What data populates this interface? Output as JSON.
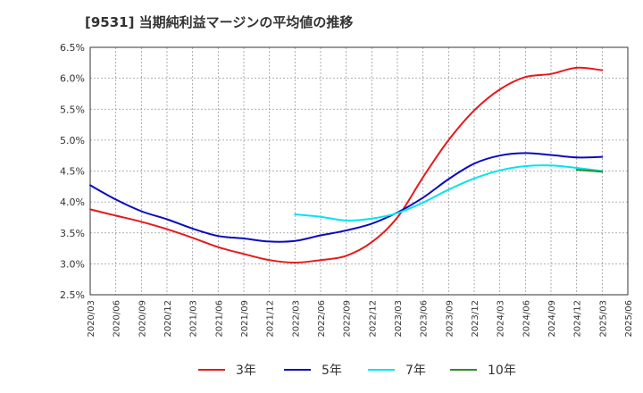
{
  "chart_data": {
    "type": "line",
    "title": "[9531]  当期純利益マージンの平均値の推移",
    "xlabel": "",
    "ylabel": "",
    "ylim": [
      2.5,
      6.5
    ],
    "y_ticks": [
      "2.5%",
      "3.0%",
      "3.5%",
      "4.0%",
      "4.5%",
      "5.0%",
      "5.5%",
      "6.0%",
      "6.5%"
    ],
    "x_ticks": [
      "2020/03",
      "2020/06",
      "2020/09",
      "2020/12",
      "2021/03",
      "2021/06",
      "2021/09",
      "2021/12",
      "2022/03",
      "2022/06",
      "2022/09",
      "2022/12",
      "2023/03",
      "2023/06",
      "2023/09",
      "2023/12",
      "2024/03",
      "2024/06",
      "2024/09",
      "2024/12",
      "2025/03",
      "2025/06"
    ],
    "grid": true,
    "legend_position": "bottom",
    "series": [
      {
        "name": "3年",
        "color": "#e41a1c",
        "x": [
          "2020/03",
          "2020/06",
          "2020/09",
          "2020/12",
          "2021/03",
          "2021/06",
          "2021/09",
          "2021/12",
          "2022/03",
          "2022/06",
          "2022/09",
          "2022/12",
          "2023/03",
          "2023/06",
          "2023/09",
          "2023/12",
          "2024/03",
          "2024/06",
          "2024/09",
          "2024/12",
          "2025/03"
        ],
        "values": [
          3.88,
          3.78,
          3.68,
          3.56,
          3.42,
          3.27,
          3.16,
          3.06,
          3.02,
          3.06,
          3.13,
          3.35,
          3.75,
          4.4,
          5.0,
          5.48,
          5.82,
          6.02,
          6.07,
          6.17,
          6.13
        ]
      },
      {
        "name": "5年",
        "color": "#0b0bbd",
        "x": [
          "2020/03",
          "2020/06",
          "2020/09",
          "2020/12",
          "2021/03",
          "2021/06",
          "2021/09",
          "2021/12",
          "2022/03",
          "2022/06",
          "2022/09",
          "2022/12",
          "2023/03",
          "2023/06",
          "2023/09",
          "2023/12",
          "2024/03",
          "2024/06",
          "2024/09",
          "2024/12",
          "2025/03"
        ],
        "values": [
          4.27,
          4.04,
          3.85,
          3.72,
          3.57,
          3.45,
          3.41,
          3.36,
          3.37,
          3.46,
          3.54,
          3.65,
          3.83,
          4.07,
          4.37,
          4.62,
          4.75,
          4.79,
          4.76,
          4.72,
          4.73
        ]
      },
      {
        "name": "7年",
        "color": "#00e5ee",
        "x": [
          "2022/03",
          "2022/06",
          "2022/09",
          "2022/12",
          "2023/03",
          "2023/06",
          "2023/09",
          "2023/12",
          "2024/03",
          "2024/06",
          "2024/09",
          "2024/12",
          "2025/03"
        ],
        "values": [
          3.8,
          3.76,
          3.7,
          3.73,
          3.82,
          3.99,
          4.2,
          4.38,
          4.51,
          4.58,
          4.59,
          4.55,
          4.5
        ]
      },
      {
        "name": "10年",
        "color": "#2e8b2e",
        "x": [
          "2024/12",
          "2025/03"
        ],
        "values": [
          4.52,
          4.49
        ]
      }
    ]
  }
}
